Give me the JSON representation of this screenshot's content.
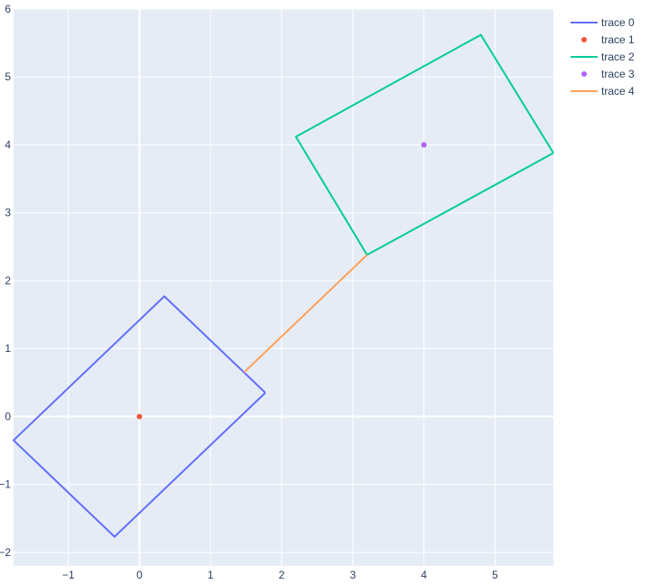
{
  "chart_data": {
    "type": "scatter",
    "title": "",
    "xlabel": "",
    "ylabel": "",
    "xlim": [
      -1.77,
      5.82
    ],
    "ylim": [
      -2.2,
      6.0
    ],
    "grid": true,
    "legend_position": "top-right",
    "colors": {
      "plot_bg": "#e5ecf6",
      "grid": "#ffffff",
      "text": "#2a3f5f"
    },
    "x_ticks": [
      {
        "value": -1,
        "label": "−1"
      },
      {
        "value": 0,
        "label": "0"
      },
      {
        "value": 1,
        "label": "1"
      },
      {
        "value": 2,
        "label": "2"
      },
      {
        "value": 3,
        "label": "3"
      },
      {
        "value": 4,
        "label": "4"
      },
      {
        "value": 5,
        "label": "5"
      }
    ],
    "y_ticks": [
      {
        "value": -2,
        "label": "−2"
      },
      {
        "value": -1,
        "label": "−1"
      },
      {
        "value": 0,
        "label": "0"
      },
      {
        "value": 1,
        "label": "1"
      },
      {
        "value": 2,
        "label": "2"
      },
      {
        "value": 3,
        "label": "3"
      },
      {
        "value": 4,
        "label": "4"
      },
      {
        "value": 5,
        "label": "5"
      },
      {
        "value": 6,
        "label": "6"
      }
    ],
    "series": [
      {
        "name": "trace 0",
        "mode": "lines",
        "color": "#636efa",
        "x": [
          1.77,
          0.35,
          -1.77,
          -0.35,
          1.77
        ],
        "y": [
          0.35,
          1.77,
          -0.35,
          -1.77,
          0.35
        ]
      },
      {
        "name": "trace 1",
        "mode": "markers",
        "color": "#ef553b",
        "x": [
          0
        ],
        "y": [
          0
        ]
      },
      {
        "name": "trace 2",
        "mode": "lines",
        "color": "#00cc96",
        "x": [
          5.82,
          4.8,
          2.2,
          3.2,
          5.82
        ],
        "y": [
          3.88,
          5.62,
          4.12,
          2.38,
          3.88
        ]
      },
      {
        "name": "trace 3",
        "mode": "markers",
        "color": "#ab63fa",
        "x": [
          4
        ],
        "y": [
          4
        ]
      },
      {
        "name": "trace 4",
        "mode": "lines",
        "color": "#ffa15a",
        "x": [
          1.47,
          3.2
        ],
        "y": [
          0.65,
          2.38
        ]
      }
    ]
  }
}
